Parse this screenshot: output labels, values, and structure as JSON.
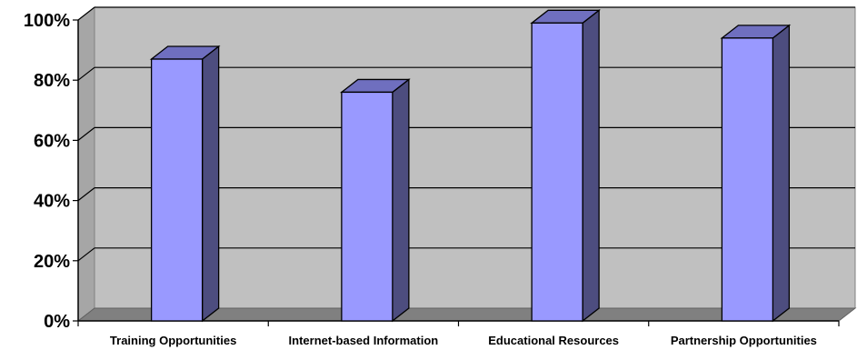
{
  "chart_data": {
    "type": "bar",
    "title": "",
    "xlabel": "",
    "ylabel": "",
    "categories": [
      "Training Opportunities",
      "Internet-based Information",
      "Educational Resources",
      "Partnership Opportunities"
    ],
    "values": [
      87,
      76,
      99,
      94
    ],
    "value_unit": "%",
    "ylim": [
      0,
      100
    ],
    "yticks": [
      "0%",
      "20%",
      "40%",
      "60%",
      "80%",
      "100%"
    ],
    "grid": true,
    "legend": "none",
    "style": "3d-column",
    "colors": {
      "bar_front": "#9999ff",
      "bar_side": "#4d4d7f",
      "bar_top": "#6f6fbf",
      "plot_wall": "#c0c0c0",
      "floor": "#808080",
      "gridline": "#000000"
    }
  }
}
